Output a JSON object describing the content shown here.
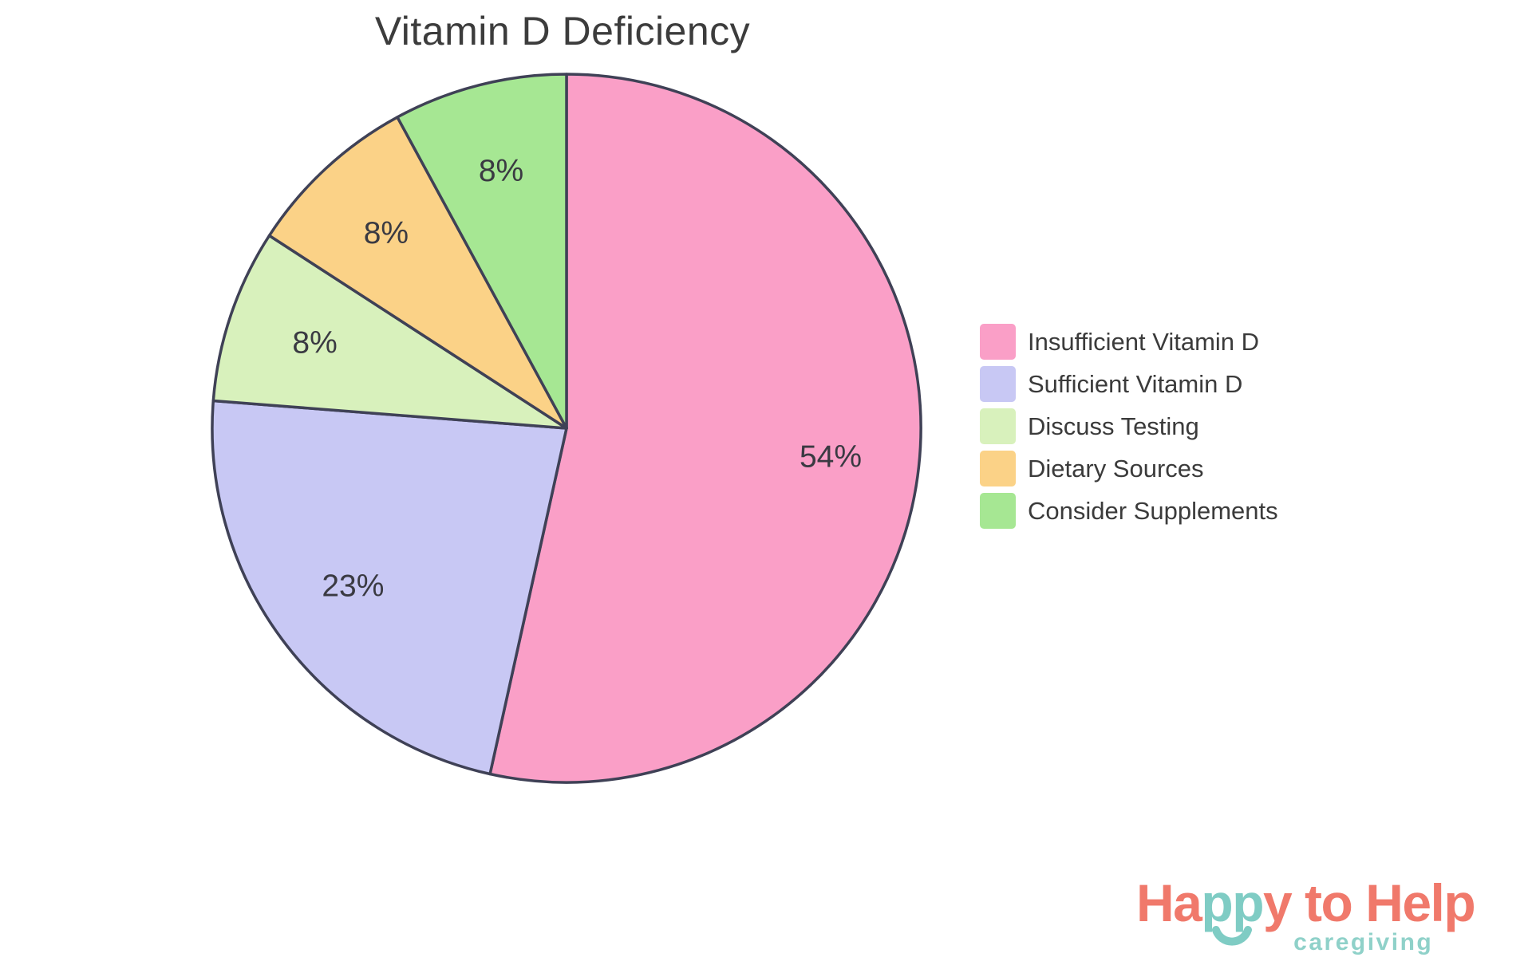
{
  "chart_data": {
    "type": "pie",
    "title": "Vitamin D Deficiency",
    "start_angle": "top",
    "direction": "clockwise",
    "legend_position": "right",
    "outline_color": "#3F4156",
    "label_color": "#3A3A42",
    "title_color": "#3C3C3C",
    "slices": [
      {
        "label": "Insufficient Vitamin D",
        "percent": 54,
        "display_label": "54%",
        "color": "#FA9FC7"
      },
      {
        "label": "Sufficient Vitamin D",
        "percent": 23,
        "display_label": "23%",
        "color": "#C8C8F4"
      },
      {
        "label": "Discuss Testing",
        "percent": 8,
        "display_label": "8%",
        "color": "#D8F1BC"
      },
      {
        "label": "Dietary Sources",
        "percent": 8,
        "display_label": "8%",
        "color": "#FBD287"
      },
      {
        "label": "Consider Supplements",
        "percent": 8,
        "display_label": "8%",
        "color": "#A6E793"
      }
    ]
  },
  "legend": {
    "items": [
      {
        "label": "Insufficient Vitamin D"
      },
      {
        "label": "Sufficient Vitamin D"
      },
      {
        "label": "Discuss Testing"
      },
      {
        "label": "Dietary Sources"
      },
      {
        "label": "Consider Supplements"
      }
    ]
  },
  "logo": {
    "parts": [
      {
        "text": "Ha",
        "color": "#F0796B"
      },
      {
        "text": "pp",
        "color": "#7FCCC4"
      },
      {
        "text": "y to Help",
        "color": "#F0796B"
      }
    ],
    "tagline": "caregiving",
    "tagline_color": "#8FD1C9",
    "smile_color": "#7FCCC4"
  }
}
